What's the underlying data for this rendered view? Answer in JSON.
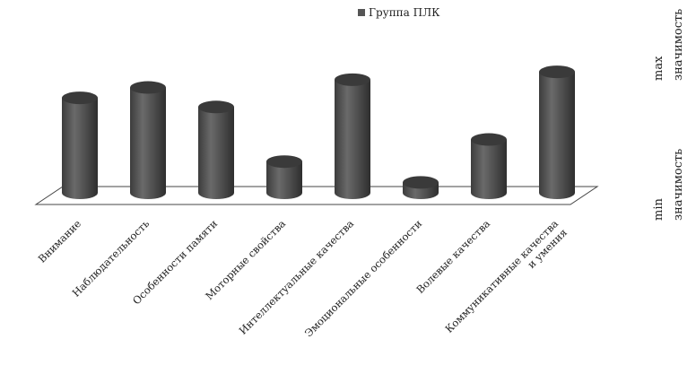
{
  "chart_data": {
    "type": "bar",
    "title": "",
    "xlabel": "",
    "ylabel": "",
    "categories": [
      "Внимание",
      "Наблюдательность",
      "Особенности памяти",
      "Моторные свойства",
      "Интеллектуальные качества",
      "Эмоциональные особенности",
      "Волевые качества",
      "Коммуникативные качества и умения"
    ],
    "series": [
      {
        "name": "Группа ПЛК",
        "values": [
          0.73,
          0.81,
          0.66,
          0.24,
          0.87,
          0.08,
          0.41,
          0.93
        ],
        "color": "#555555"
      }
    ],
    "ylim": [
      0,
      1
    ],
    "grid": false,
    "legend_position": "top",
    "bar_style": "3d-cylinder"
  },
  "axis_extremes": {
    "max_label_line1": "max",
    "max_label_line2": "значимость",
    "min_label_line1": "min",
    "min_label_line2": "значимость"
  }
}
